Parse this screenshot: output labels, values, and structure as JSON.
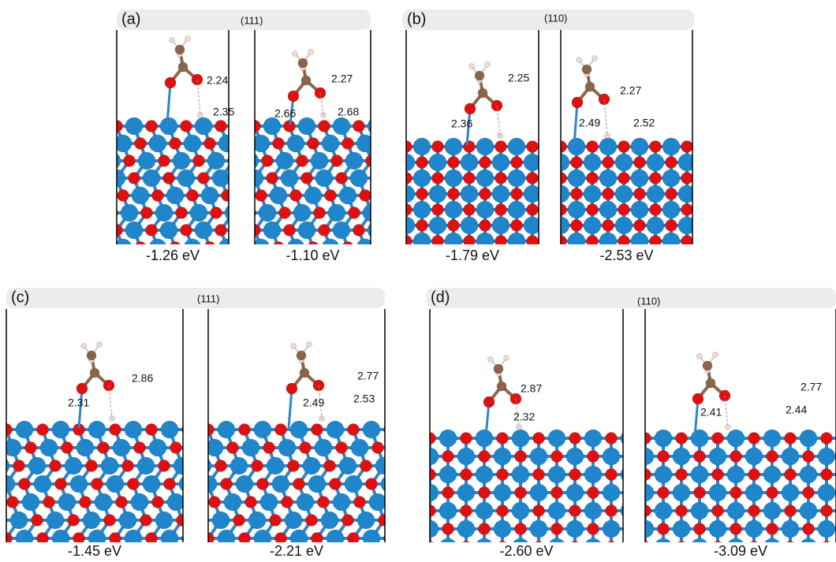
{
  "panels": [
    {
      "label": "(a)",
      "facet": "(111)",
      "structures": [
        {
          "energy": "-1.26 eV",
          "distances": [
            "2.24",
            "2.35"
          ]
        },
        {
          "energy": "-1.10 eV",
          "distances": [
            "2.27",
            "2.66",
            "2.68"
          ]
        }
      ]
    },
    {
      "label": "(b)",
      "facet": "(110)",
      "structures": [
        {
          "energy": "-1.79 eV",
          "distances": [
            "2.25",
            "2.36"
          ]
        },
        {
          "energy": "-2.53 eV",
          "distances": [
            "2.27",
            "2.49",
            "2.52"
          ]
        }
      ]
    },
    {
      "label": "(c)",
      "facet": "(111)",
      "structures": [
        {
          "energy": "-1.45 eV",
          "distances": [
            "2.86",
            "2.31"
          ]
        },
        {
          "energy": "-2.21 eV",
          "distances": [
            "2.77",
            "2.49",
            "2.53"
          ]
        }
      ]
    },
    {
      "label": "(d)",
      "facet": "(110)",
      "structures": [
        {
          "energy": "-2.60 eV",
          "distances": [
            "2.87",
            "2.32"
          ]
        },
        {
          "energy": "-3.09 eV",
          "distances": [
            "2.77",
            "2.41",
            "2.44"
          ]
        }
      ]
    }
  ]
}
